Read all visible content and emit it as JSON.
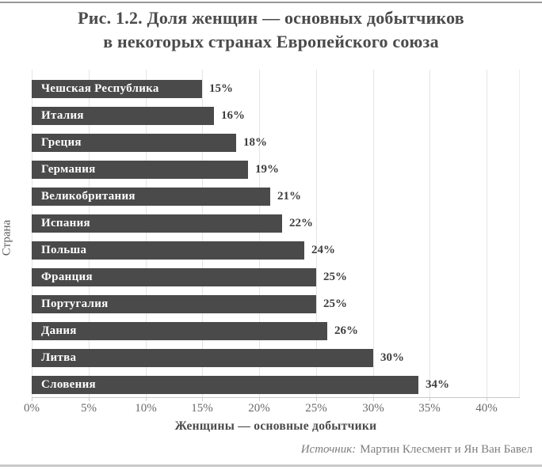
{
  "title": {
    "line1": "Рис. 1.2. Доля женщин — основных добытчиков",
    "line2": "в некоторых странах Европейского союза"
  },
  "chart_data": {
    "type": "bar",
    "orientation": "horizontal",
    "categories": [
      "Чешская Республика",
      "Италия",
      "Греция",
      "Германия",
      "Великобритания",
      "Испания",
      "Польша",
      "Франция",
      "Португалия",
      "Дания",
      "Литва",
      "Словения"
    ],
    "values": [
      15,
      16,
      18,
      19,
      21,
      22,
      24,
      25,
      25,
      26,
      30,
      34
    ],
    "value_suffix": "%",
    "title": "Рис. 1.2. Доля женщин — основных добытчиков в некоторых странах Европейского союза",
    "xlabel": "Женщины — основные добытчики",
    "ylabel": "Страна",
    "xlim": [
      0,
      40
    ],
    "xticks": [
      0,
      5,
      10,
      15,
      20,
      25,
      30,
      35,
      40
    ],
    "xtick_labels": [
      "0%",
      "5%",
      "10%",
      "15%",
      "20%",
      "25%",
      "30%",
      "35%",
      "40%"
    ],
    "grid": true,
    "legend": "none",
    "bar_color": "#4a4a4a",
    "bar_label_color": "#ffffff"
  },
  "source": {
    "prefix": "Источник:",
    "text": "Мартин Клесмент и Ян Ван Бавел"
  }
}
